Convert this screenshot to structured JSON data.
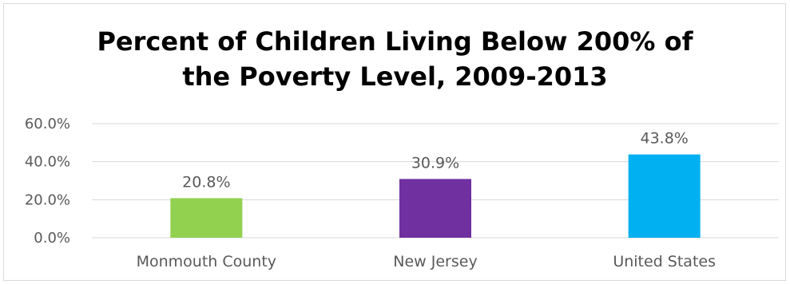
{
  "chart_data": {
    "type": "bar",
    "title": "Percent of Children Living Below 200% of the Poverty Level, 2009-2013",
    "title_lines": [
      "Percent of Children Living Below 200% of",
      "the Poverty Level, 2009-2013"
    ],
    "categories": [
      "Monmouth County",
      "New Jersey",
      "United States"
    ],
    "values": [
      20.8,
      30.9,
      43.8
    ],
    "data_labels": [
      "20.8%",
      "30.9%",
      "43.8%"
    ],
    "colors": [
      "#92d050",
      "#7030a0",
      "#00b0f0"
    ],
    "ylim": [
      0,
      60
    ],
    "yticks": [
      0,
      20,
      40,
      60
    ],
    "ytick_labels": [
      "0.0%",
      "20.0%",
      "40.0%",
      "60.0%"
    ],
    "grid": true,
    "legend": "none",
    "xlabel": "",
    "ylabel": ""
  }
}
